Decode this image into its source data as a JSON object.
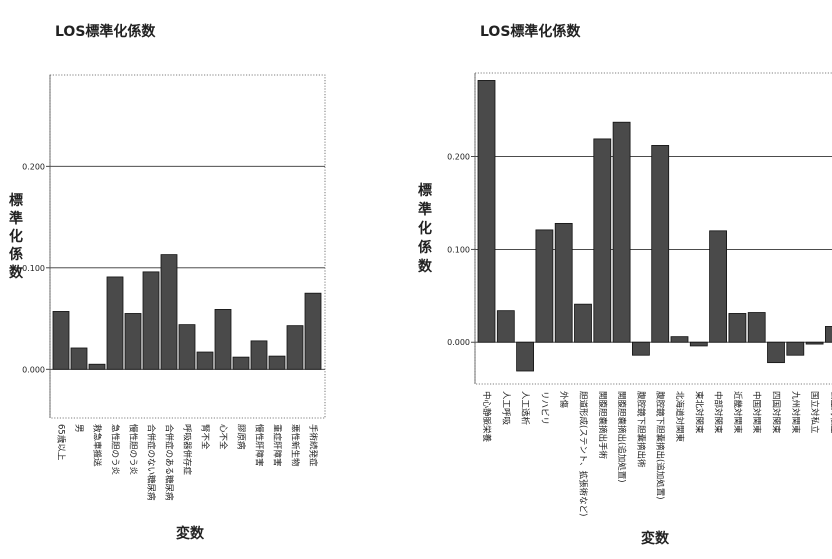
{
  "chart_data": [
    {
      "type": "bar",
      "title": "LOS標準化係数",
      "xlabel": "変数",
      "ylabel": "標準化係数",
      "ylim": [
        -0.048,
        0.29
      ],
      "ticks": [
        0.0,
        0.1,
        0.2
      ],
      "tick_labels": [
        "0.000",
        "0.100",
        "0.200"
      ],
      "grid": true,
      "categories": [
        "65歳以上",
        "男",
        "救急車搬送",
        "急性胆のう炎",
        "慢性胆のう炎",
        "合併症のない糖尿病",
        "合併症のある糖尿病",
        "呼吸器併存症",
        "腎不全",
        "心不全",
        "膠原病",
        "慢性肝障害",
        "重症肝障害",
        "悪性新生物",
        "手術続発症"
      ],
      "values": [
        0.057,
        0.021,
        0.005,
        0.091,
        0.055,
        0.096,
        0.113,
        0.044,
        0.017,
        0.059,
        0.012,
        0.028,
        0.013,
        0.043,
        0.075
      ]
    },
    {
      "type": "bar",
      "title": "LOS標準化係数",
      "xlabel": "変数",
      "ylabel": "標準化係数",
      "ylim": [
        -0.045,
        0.29
      ],
      "ticks": [
        0.0,
        0.1,
        0.2
      ],
      "tick_labels": [
        "0.000",
        "0.100",
        "0.200"
      ],
      "grid": true,
      "categories": [
        "中心静脈栄養",
        "人工呼吸",
        "人工透析",
        "リハビリ",
        "外傷",
        "胆道形成(ステント、拡張術など)",
        "開腹胆嚢摘出手術",
        "開腹胆嚢摘出(追加処置)",
        "腹腔鏡下胆嚢摘出術",
        "腹腔鏡下胆嚢摘出(追加処置)",
        "北海道対関東",
        "東北対関東",
        "中部対関東",
        "近畿対関東",
        "中国対関東",
        "四国対関東",
        "九州対関東",
        "国立対私立",
        "公立対私立"
      ],
      "values": [
        0.282,
        0.034,
        -0.031,
        0.121,
        0.128,
        0.041,
        0.219,
        0.237,
        -0.014,
        0.212,
        0.006,
        -0.004,
        0.12,
        0.031,
        0.032,
        -0.022,
        -0.014,
        -0.002,
        0.017
      ]
    }
  ]
}
